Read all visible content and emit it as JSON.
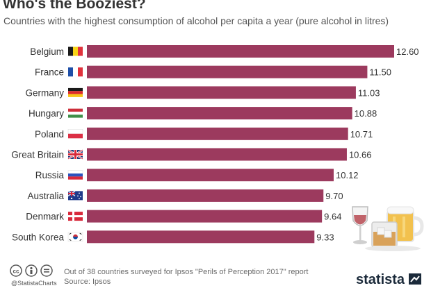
{
  "title": "Who's the Booziest?",
  "subtitle": "Countries with the highest consumption of alcohol per capita a year (pure alcohol in litres)",
  "colors": {
    "bar": "#9c3a5e",
    "text": "#333333"
  },
  "chart_data": {
    "type": "bar",
    "orientation": "horizontal",
    "categories": [
      "Belgium",
      "France",
      "Germany",
      "Hungary",
      "Poland",
      "Great Britain",
      "Russia",
      "Australia",
      "Denmark",
      "South Korea"
    ],
    "values": [
      12.6,
      11.5,
      11.03,
      10.88,
      10.71,
      10.66,
      10.12,
      9.7,
      9.64,
      9.33
    ],
    "value_labels": [
      "12.60",
      "11.50",
      "11.03",
      "10.88",
      "10.71",
      "10.66",
      "10.12",
      "9.70",
      "9.64",
      "9.33"
    ],
    "flags": [
      "belgium-flag-icon",
      "france-flag-icon",
      "germany-flag-icon",
      "hungary-flag-icon",
      "poland-flag-icon",
      "great-britain-flag-icon",
      "russia-flag-icon",
      "australia-flag-icon",
      "denmark-flag-icon",
      "south-korea-flag-icon"
    ],
    "xlim": [
      0,
      12.6
    ],
    "title": "Who's the Booziest?",
    "xlabel": "",
    "ylabel": ""
  },
  "footer": {
    "note": "Out of 38 countries surveyed for Ipsos \"Perils of Perception 2017\" report",
    "source": "Source: Ipsos",
    "handle": "@StatistaCharts",
    "brand": "statista"
  }
}
